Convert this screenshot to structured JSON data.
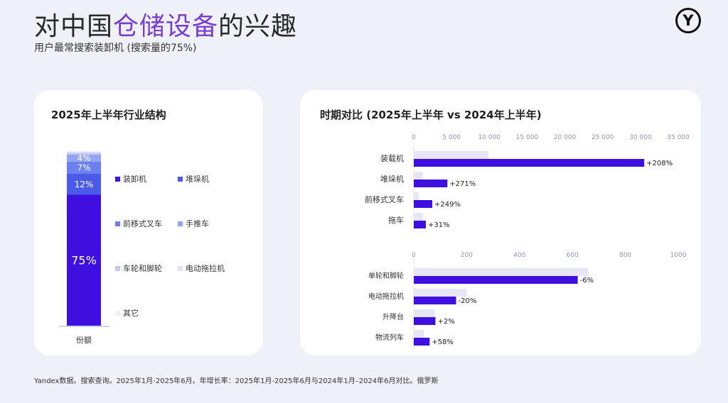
{
  "header": {
    "title_prefix": "对中国",
    "title_accent": "仓储设备",
    "title_suffix": "的兴趣",
    "subtitle": "用户最常搜索装卸机 (搜索量的75%)",
    "logo_glyph": "Y"
  },
  "footnote": "Yandex数据。搜索查询。2025年1月-2025年6月。年增长率：2025年1月-2025年6月与2024年1月–2024年6月对比。俄罗斯",
  "colors": {
    "primary": "#3f0fe0",
    "light": "#e6e6f6",
    "accent_title": "#7b3fd0"
  },
  "chart_data": [
    {
      "type": "bar",
      "stacked": true,
      "title": "2025年上半年行业结构",
      "categories": [
        "份额"
      ],
      "series": [
        {
          "name": "装卸机",
          "value": 75,
          "label": "75%",
          "color": "#3f0fe0"
        },
        {
          "name": "堆垛机",
          "value": 12,
          "label": "12%",
          "color": "#4b5be8"
        },
        {
          "name": "前移式叉车",
          "value": 7,
          "label": "7%",
          "color": "#6b80ee"
        },
        {
          "name": "手推车",
          "value": 4,
          "label": "4%",
          "color": "#93a4f4"
        },
        {
          "name": "车轮和脚轮",
          "value": 1,
          "label": "",
          "color": "#c0c9f8"
        },
        {
          "name": "电动拖拉机",
          "value": 0.6,
          "label": "",
          "color": "#dde2fb"
        },
        {
          "name": "其它",
          "value": 0.4,
          "label": "",
          "color": "#eef0fc"
        }
      ],
      "legend": "right",
      "ylim": [
        0,
        100
      ]
    },
    {
      "type": "bar",
      "orientation": "horizontal",
      "title": "时期对比 (2025年上半年 vs 2024年上半年)",
      "xlim": [
        0,
        35000
      ],
      "ticks": [
        0,
        5000,
        10000,
        15000,
        20000,
        25000,
        30000,
        35000
      ],
      "tick_labels": [
        "0",
        "5 000",
        "10 000",
        "15 000",
        "20 000",
        "25 000",
        "30 000",
        "35 000"
      ],
      "categories": [
        "装载机",
        "堆垛机",
        "前移式叉车",
        "拖车"
      ],
      "series": [
        {
          "period": "2024年上半年",
          "values": [
            9900,
            1200,
            700,
            1200
          ]
        },
        {
          "period": "2025年上半年",
          "values": [
            30500,
            4450,
            2450,
            1600
          ]
        }
      ],
      "growth_labels": [
        "+208%",
        "+271%",
        "+249%",
        "+31%"
      ]
    },
    {
      "type": "bar",
      "orientation": "horizontal",
      "xlim": [
        0,
        1000
      ],
      "ticks": [
        0,
        200,
        400,
        600,
        800,
        1000
      ],
      "tick_labels": [
        "0",
        "200",
        "400",
        "600",
        "800",
        "1000"
      ],
      "categories": [
        "单轮和脚轮",
        "电动拖拉机",
        "升降台",
        "物流列车"
      ],
      "series": [
        {
          "period": "2024年上半年",
          "values": [
            660,
            200,
            80,
            38
          ]
        },
        {
          "period": "2025年上半年",
          "values": [
            620,
            160,
            82,
            60
          ]
        }
      ],
      "growth_labels": [
        "-6%",
        "-20%",
        "+2%",
        "+58%"
      ]
    }
  ]
}
